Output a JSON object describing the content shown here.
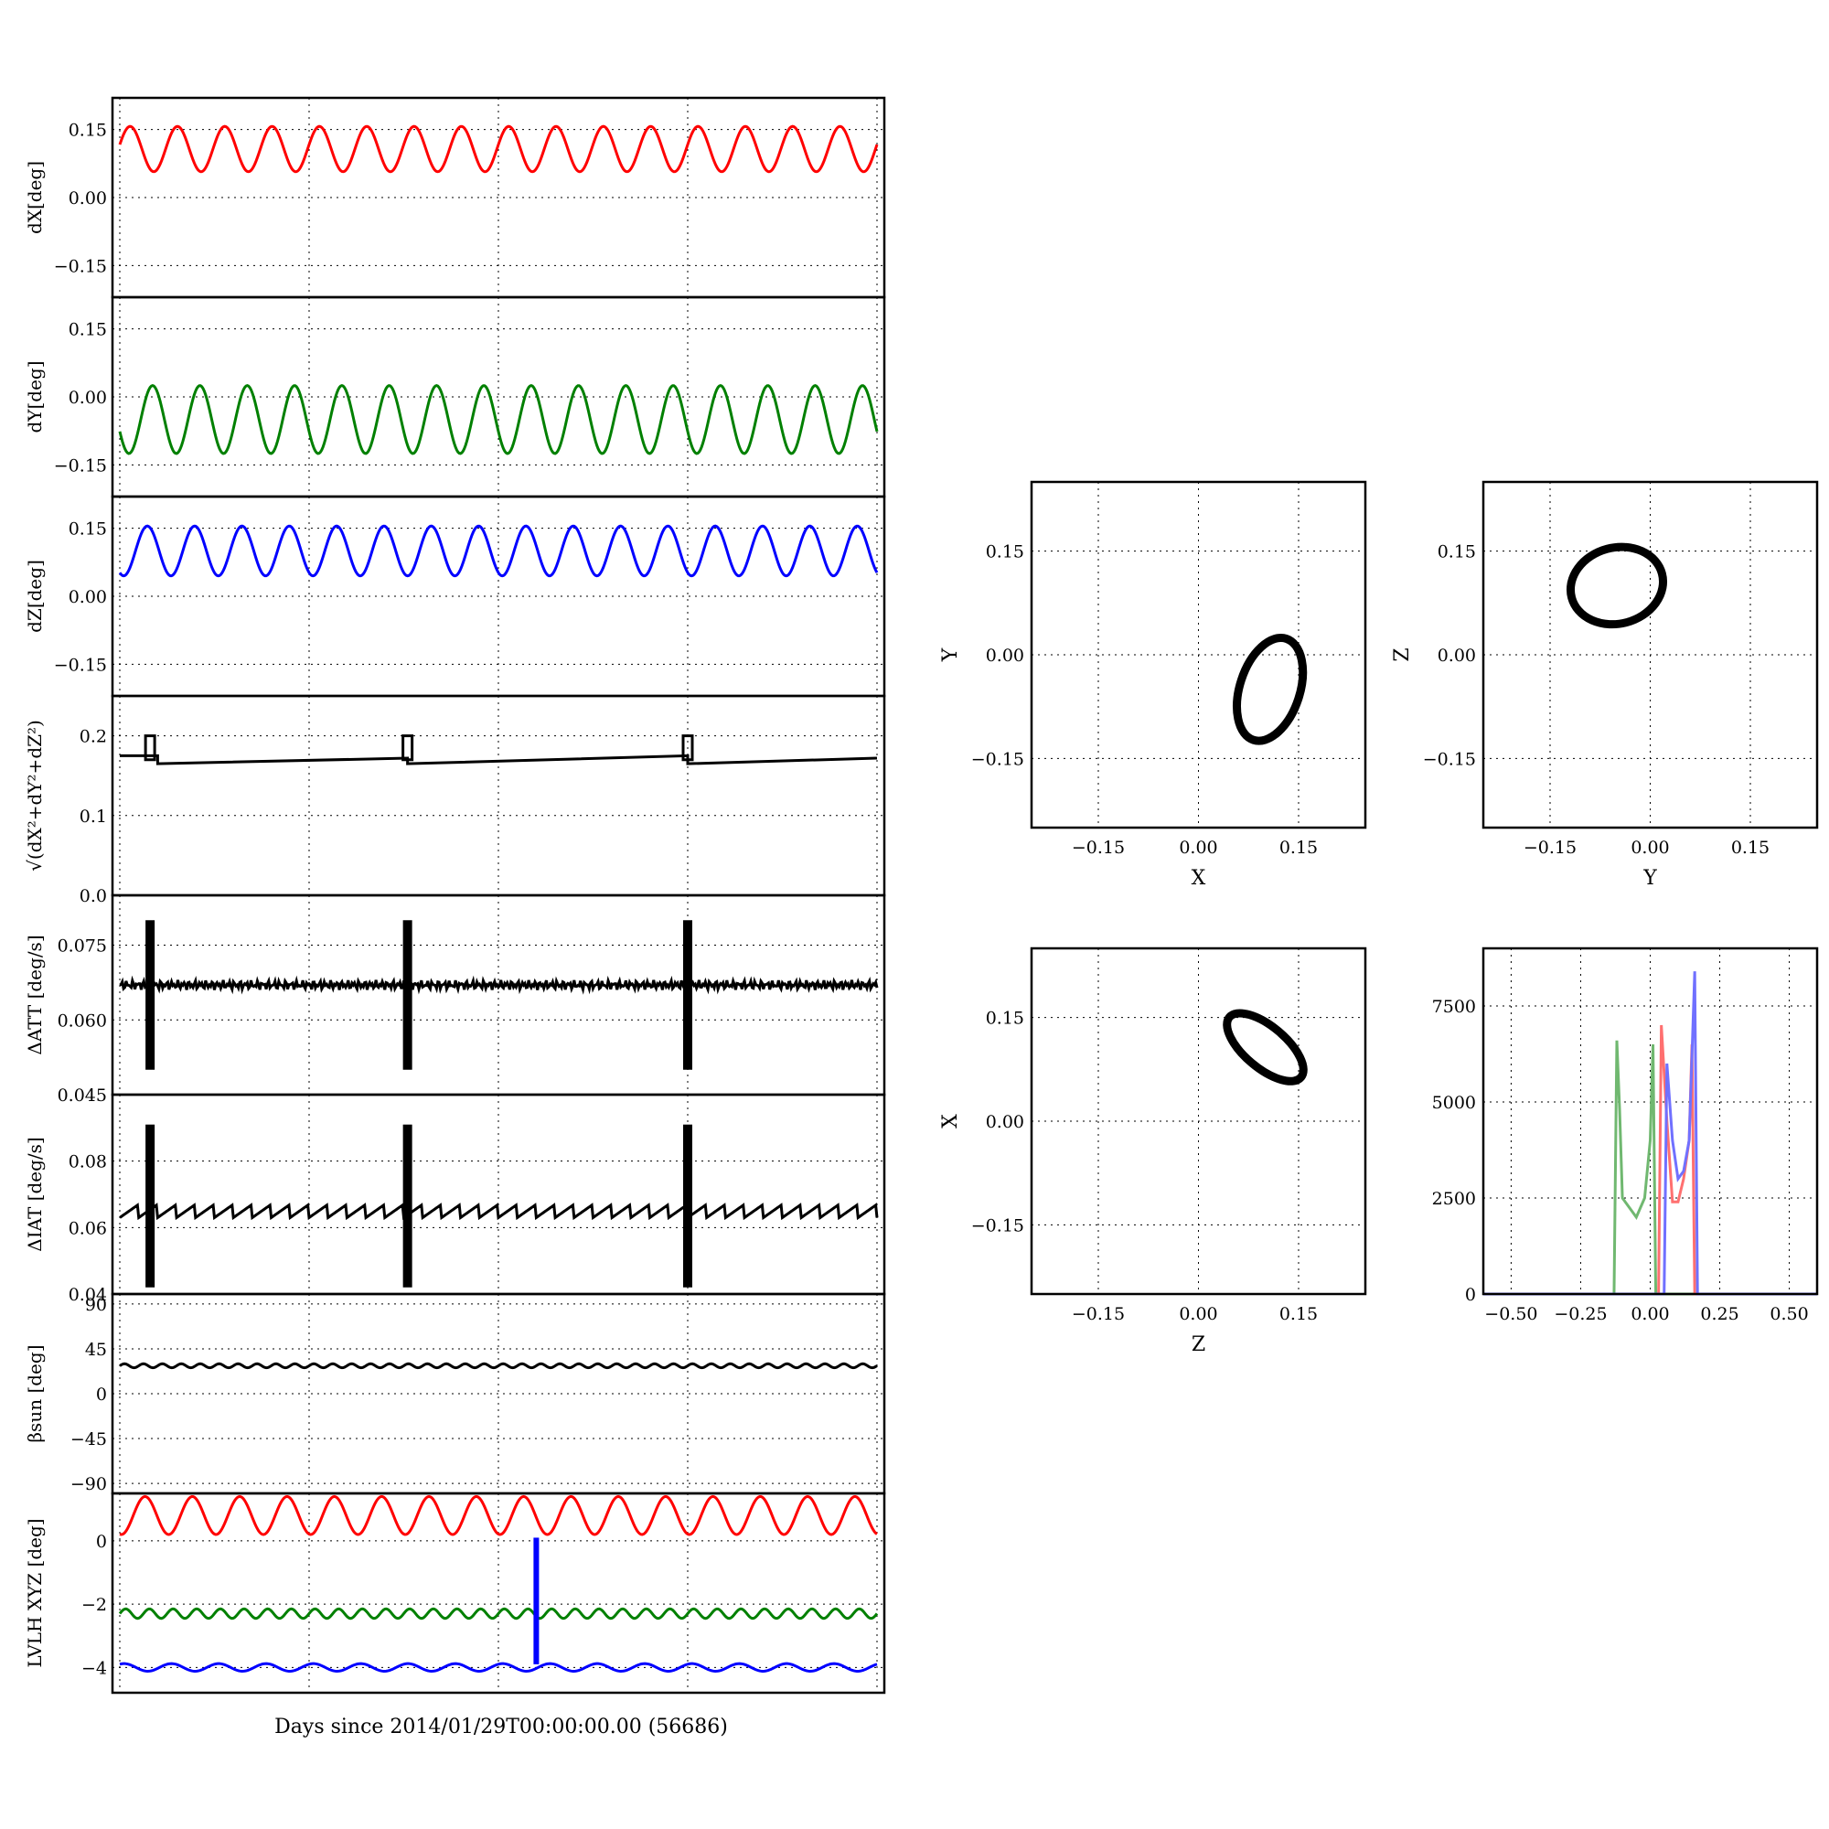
{
  "figure": {
    "xlabel_bottom": "Days since 2014/01/29T00:00:00.00 (56686)"
  },
  "colors": {
    "red": "#ff0000",
    "green": "#008000",
    "blue": "#0000ff",
    "black": "#000000",
    "hist_red": "#ff7070",
    "hist_green": "#70b870",
    "hist_blue": "#7070ff"
  },
  "chart_data": [
    {
      "id": "dX",
      "type": "line",
      "ylabel": "dX[deg]",
      "ylim": [
        -0.22,
        0.22
      ],
      "yticks": [
        0.15,
        0.0,
        -0.15
      ],
      "ytick_labels": [
        "0.15",
        "0.00",
        "−0.15"
      ],
      "grid": true,
      "series": [
        {
          "color": "red",
          "kind": "sine",
          "center": 0.107,
          "amplitude": 0.05,
          "cycles": 16,
          "phase": 0.2
        }
      ]
    },
    {
      "id": "dY",
      "type": "line",
      "ylabel": "dY[deg]",
      "ylim": [
        -0.22,
        0.22
      ],
      "yticks": [
        0.15,
        0.0,
        -0.15
      ],
      "ytick_labels": [
        "0.15",
        "0.00",
        "−0.15"
      ],
      "grid": true,
      "series": [
        {
          "color": "green",
          "kind": "sine",
          "center": -0.05,
          "amplitude": 0.075,
          "cycles": 16,
          "phase": 3.5
        }
      ]
    },
    {
      "id": "dZ",
      "type": "line",
      "ylabel": "dZ[deg]",
      "ylim": [
        -0.22,
        0.22
      ],
      "yticks": [
        0.15,
        0.0,
        -0.15
      ],
      "ytick_labels": [
        "0.15",
        "0.00",
        "−0.15"
      ],
      "grid": true,
      "series": [
        {
          "color": "blue",
          "kind": "sine",
          "center": 0.1,
          "amplitude": 0.055,
          "cycles": 16,
          "phase": 4.2
        }
      ]
    },
    {
      "id": "dR",
      "type": "line",
      "ylabel": "√(dX²+dY²+dZ²)",
      "ylim": [
        0.0,
        0.25
      ],
      "yticks": [
        0.2,
        0.1,
        0.0
      ],
      "ytick_labels": [
        "0.2",
        "0.1",
        "0.0"
      ],
      "grid": true,
      "series": [
        {
          "color": "black",
          "kind": "ramp",
          "segments": [
            [
              0.0,
              0.175,
              0.05,
              0.175
            ],
            [
              0.05,
              0.165,
              0.38,
              0.172
            ],
            [
              0.38,
              0.165,
              0.75,
              0.175
            ],
            [
              0.75,
              0.165,
              1.0,
              0.172
            ]
          ],
          "spikes": [
            0.04,
            0.38,
            0.75
          ],
          "spike_top": 0.2
        }
      ]
    },
    {
      "id": "dATT",
      "type": "line",
      "ylabel": "ΔATT [deg/s]",
      "ylim": [
        0.045,
        0.085
      ],
      "yticks": [
        0.075,
        0.06,
        0.045
      ],
      "ytick_labels": [
        "0.075",
        "0.060",
        "0.045"
      ],
      "grid": true,
      "series": [
        {
          "color": "black",
          "kind": "noise",
          "center": 0.067,
          "amplitude": 0.001,
          "spikes": [
            0.04,
            0.38,
            0.75
          ],
          "spike_range": [
            0.05,
            0.08
          ]
        }
      ]
    },
    {
      "id": "dIAT",
      "type": "line",
      "ylabel": "ΔIAT [deg/s]",
      "ylim": [
        0.04,
        0.1
      ],
      "yticks": [
        0.08,
        0.06,
        0.04
      ],
      "ytick_labels": [
        "0.08",
        "0.06",
        "0.04"
      ],
      "grid": true,
      "series": [
        {
          "color": "black",
          "kind": "sawtooth",
          "center": 0.065,
          "amplitude": 0.002,
          "cycles": 40,
          "spikes": [
            0.04,
            0.38,
            0.75
          ],
          "spike_range": [
            0.042,
            0.091
          ]
        }
      ]
    },
    {
      "id": "beta",
      "type": "line",
      "ylabel": "βsun [deg]",
      "ylim": [
        -100,
        100
      ],
      "yticks": [
        90,
        45,
        0,
        -45,
        -90
      ],
      "ytick_labels": [
        "90",
        "45",
        "0",
        "−45",
        "−90"
      ],
      "grid": true,
      "series": [
        {
          "color": "black",
          "kind": "sine",
          "center": 28,
          "amplitude": 2,
          "cycles": 40,
          "phase": 0
        }
      ]
    },
    {
      "id": "lvlh",
      "type": "line",
      "ylabel": "LVLH XYZ [deg]",
      "ylim": [
        -4.8,
        1.5
      ],
      "yticks": [
        0,
        -2,
        -4
      ],
      "ytick_labels": [
        "0",
        "−2",
        "−4"
      ],
      "grid": true,
      "series": [
        {
          "color": "red",
          "kind": "sine",
          "center": 0.8,
          "amplitude": 0.6,
          "cycles": 16,
          "phase": 4.5
        },
        {
          "color": "green",
          "kind": "sine",
          "center": -2.3,
          "amplitude": 0.15,
          "cycles": 32,
          "phase": 0
        },
        {
          "color": "blue",
          "kind": "sine",
          "center": -4.0,
          "amplitude": 0.12,
          "cycles": 16,
          "phase": 1
        },
        {
          "color": "blue",
          "kind": "bar",
          "x": 0.55,
          "y0": -3.9,
          "y1": 0.1
        }
      ]
    },
    {
      "id": "XY",
      "type": "scatter",
      "xlabel": "X",
      "ylabel": "Y",
      "xlim": [
        -0.25,
        0.25
      ],
      "ylim": [
        -0.25,
        0.25
      ],
      "ticks": [
        -0.15,
        0.0,
        0.15
      ],
      "tick_labels": [
        "−0.15",
        "0.00",
        "0.15"
      ],
      "grid": true,
      "ellipse": {
        "cx": 0.107,
        "cy": -0.05,
        "rx": 0.045,
        "ry": 0.077,
        "rot": 18
      }
    },
    {
      "id": "YZ",
      "type": "scatter",
      "xlabel": "Y",
      "ylabel": "Z",
      "xlim": [
        -0.25,
        0.25
      ],
      "ylim": [
        -0.25,
        0.25
      ],
      "ticks": [
        -0.15,
        0.0,
        0.15
      ],
      "tick_labels": [
        "−0.15",
        "0.00",
        "0.15"
      ],
      "grid": true,
      "ellipse": {
        "cx": -0.05,
        "cy": 0.1,
        "rx": 0.07,
        "ry": 0.055,
        "rot": -15
      }
    },
    {
      "id": "ZX",
      "type": "scatter",
      "xlabel": "Z",
      "ylabel": "X",
      "xlim": [
        -0.25,
        0.25
      ],
      "ylim": [
        -0.25,
        0.25
      ],
      "ticks": [
        -0.15,
        0.0,
        0.15
      ],
      "tick_labels": [
        "−0.15",
        "0.00",
        "0.15"
      ],
      "grid": true,
      "ellipse": {
        "cx": 0.1,
        "cy": 0.107,
        "rx": 0.07,
        "ry": 0.03,
        "rot": 40
      }
    },
    {
      "id": "hist",
      "type": "line",
      "xlim": [
        -0.6,
        0.6
      ],
      "ylim": [
        0,
        9000
      ],
      "xticks": [
        -0.5,
        -0.25,
        0.0,
        0.25,
        0.5
      ],
      "xtick_labels": [
        "−0.50",
        "−0.25",
        "0.00",
        "0.25",
        "0.50"
      ],
      "yticks": [
        0,
        2500,
        5000,
        7500
      ],
      "ytick_labels": [
        "0",
        "2500",
        "5000",
        "7500"
      ],
      "grid": true,
      "series": [
        {
          "color": "hist_green",
          "points": [
            [
              -0.6,
              0
            ],
            [
              -0.13,
              0
            ],
            [
              -0.12,
              6600
            ],
            [
              -0.11,
              4800
            ],
            [
              -0.1,
              2500
            ],
            [
              -0.08,
              2300
            ],
            [
              -0.05,
              2000
            ],
            [
              -0.02,
              2500
            ],
            [
              0.0,
              4000
            ],
            [
              0.01,
              6500
            ],
            [
              0.02,
              0
            ],
            [
              0.6,
              0
            ]
          ]
        },
        {
          "color": "hist_red",
          "points": [
            [
              -0.6,
              0
            ],
            [
              0.03,
              0
            ],
            [
              0.04,
              7000
            ],
            [
              0.06,
              4500
            ],
            [
              0.08,
              2400
            ],
            [
              0.1,
              2400
            ],
            [
              0.12,
              3000
            ],
            [
              0.14,
              4000
            ],
            [
              0.15,
              6500
            ],
            [
              0.16,
              0
            ],
            [
              0.6,
              0
            ]
          ]
        },
        {
          "color": "hist_blue",
          "points": [
            [
              -0.6,
              0
            ],
            [
              0.05,
              0
            ],
            [
              0.06,
              6000
            ],
            [
              0.08,
              4000
            ],
            [
              0.1,
              3000
            ],
            [
              0.12,
              3200
            ],
            [
              0.14,
              4000
            ],
            [
              0.16,
              8400
            ],
            [
              0.17,
              0
            ],
            [
              0.6,
              0
            ]
          ]
        }
      ]
    }
  ]
}
